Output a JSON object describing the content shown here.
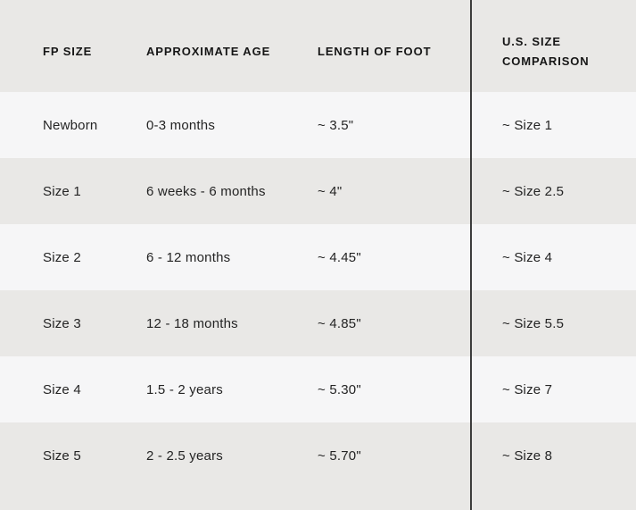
{
  "colors": {
    "row_light": "#f6f6f7",
    "row_gray": "#e9e8e6",
    "divider": "#3c3c3c",
    "text": "#1d1d1d"
  },
  "chart_data": {
    "type": "table",
    "columns": [
      "FP SIZE",
      "APPROXIMATE AGE",
      "LENGTH OF FOOT",
      "U.S. SIZE COMPARISON"
    ],
    "rows": [
      [
        "Newborn",
        "0-3 months",
        "~ 3.5\"",
        "~ Size 1"
      ],
      [
        "Size 1",
        "6 weeks - 6 months",
        "~ 4\"",
        "~ Size 2.5"
      ],
      [
        "Size 2",
        "6 - 12 months",
        "~ 4.45\"",
        "~ Size 4"
      ],
      [
        "Size 3",
        "12 - 18 months",
        "~ 4.85\"",
        "~ Size 5.5"
      ],
      [
        "Size 4",
        "1.5 - 2 years",
        "~ 5.30\"",
        "~ Size 7"
      ],
      [
        "Size 5",
        "2 - 2.5 years",
        "~ 5.70\"",
        "~ Size 8"
      ]
    ]
  }
}
